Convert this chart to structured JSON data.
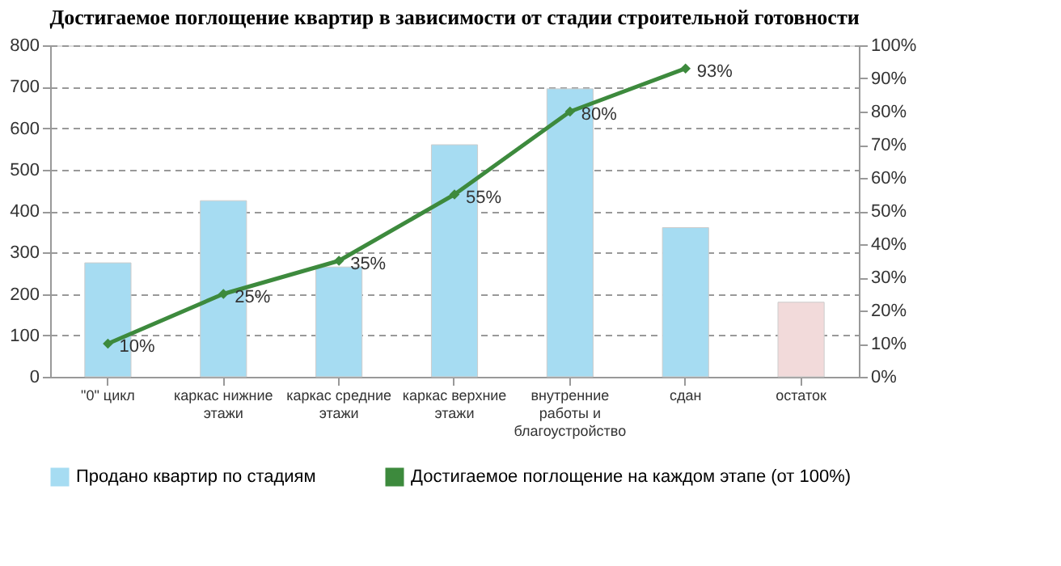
{
  "chart_data": {
    "type": "bar",
    "title": "Достигаемое  поглощение  квартир в зависимости  от стадии строительной  готовности",
    "categories": [
      "\"0\" цикл",
      "каркас нижние этажи",
      "каркас средние этажи",
      "каркас верхние этажи",
      "внутренние работы и благоустройство",
      "сдан",
      "остаток"
    ],
    "series": [
      {
        "name": "Продано квартир по стадиям",
        "color": "#a6dcf2",
        "colors": [
          "#a6dcf2",
          "#a6dcf2",
          "#a6dcf2",
          "#a6dcf2",
          "#a6dcf2",
          "#a6dcf2",
          "#f2dada"
        ],
        "values": [
          275,
          425,
          265,
          560,
          695,
          360,
          180
        ]
      },
      {
        "name": "Достигаемое поглощение на каждом этапе (от 100%)",
        "type": "line",
        "axis": "y2",
        "color": "#3d8a3d",
        "marker": "diamond",
        "values": [
          10,
          25,
          35,
          55,
          80,
          93,
          null
        ],
        "value_labels": [
          "10%",
          "25%",
          "35%",
          "55%",
          "80%",
          "93%",
          null
        ]
      }
    ],
    "ylim": [
      0,
      800
    ],
    "yticks": [
      0,
      100,
      200,
      300,
      400,
      500,
      600,
      700,
      800
    ],
    "y2lim": [
      0,
      100
    ],
    "y2ticks": [
      {
        "value": 0,
        "label": "0%"
      },
      {
        "value": 10,
        "label": "10%"
      },
      {
        "value": 20,
        "label": "20%"
      },
      {
        "value": 30,
        "label": "30%"
      },
      {
        "value": 40,
        "label": "40%"
      },
      {
        "value": 50,
        "label": "50%"
      },
      {
        "value": 60,
        "label": "60%"
      },
      {
        "value": 70,
        "label": "70%"
      },
      {
        "value": 80,
        "label": "80%"
      },
      {
        "value": 90,
        "label": "90%"
      },
      {
        "value": 100,
        "label": "100%"
      }
    ],
    "grid": "y",
    "legend": "bottom"
  }
}
